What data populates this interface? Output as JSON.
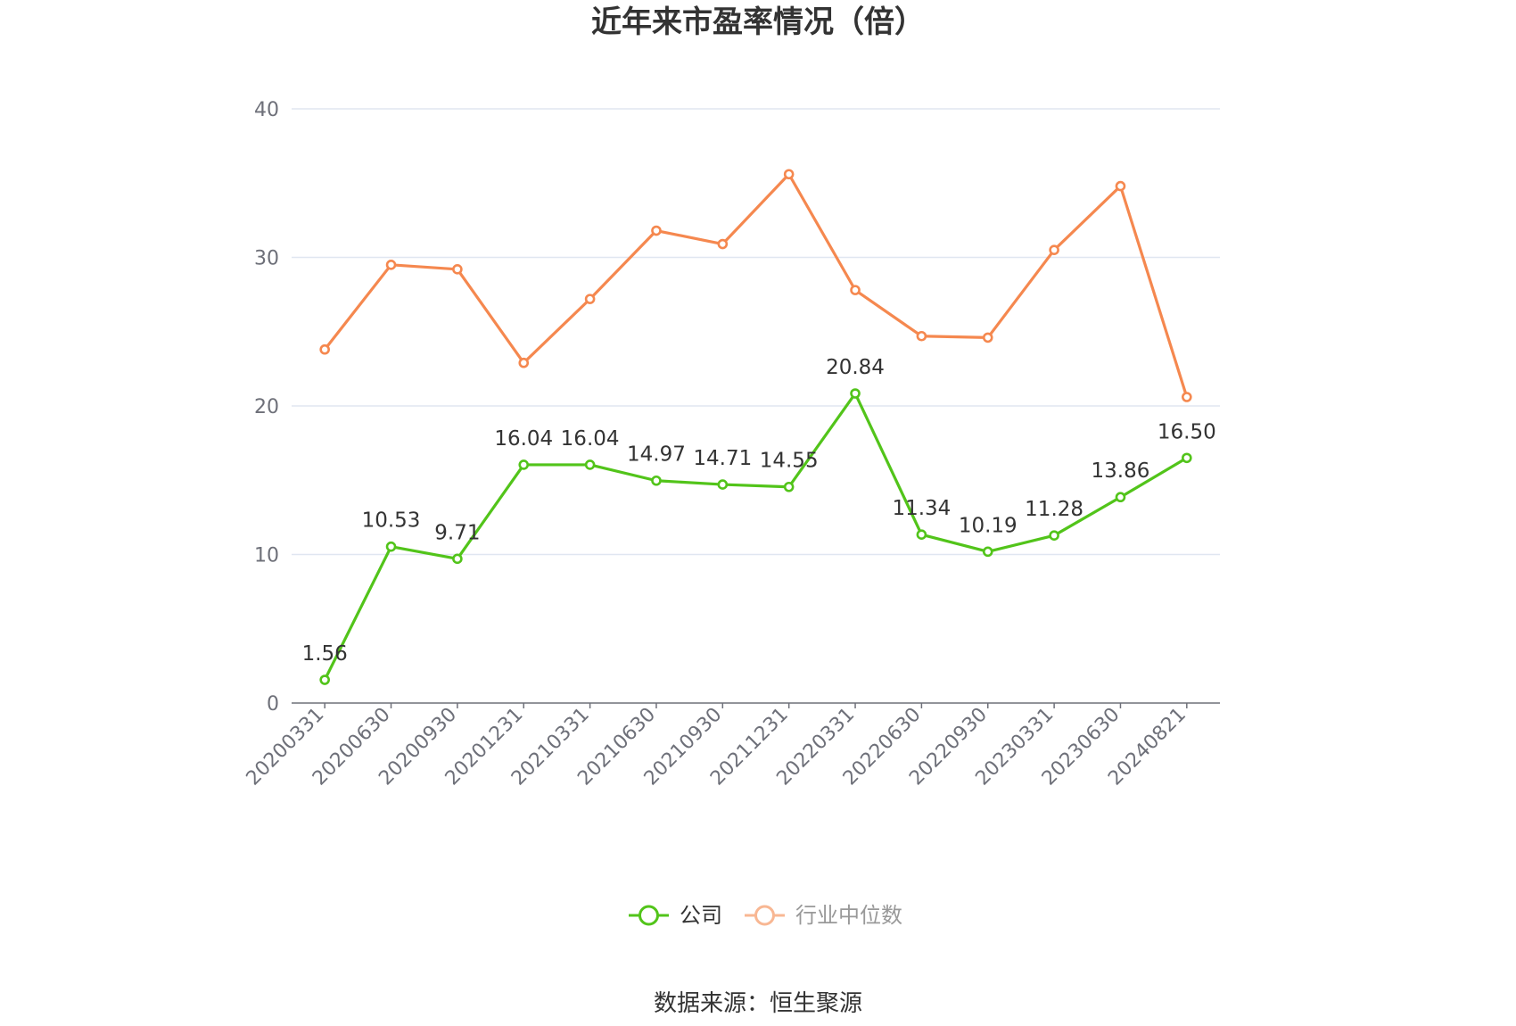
{
  "chart_data": {
    "type": "line",
    "title": "近年来市盈率情况（倍）",
    "categories": [
      "20200331",
      "20200630",
      "20200930",
      "20201231",
      "20210331",
      "20210630",
      "20210930",
      "20211231",
      "20220331",
      "20220630",
      "20220930",
      "20230331",
      "20230630",
      "20240821"
    ],
    "ylim": [
      0,
      40
    ],
    "yticks": [
      0,
      10,
      20,
      30,
      40
    ],
    "grid": true,
    "legend_position": "bottom",
    "series": [
      {
        "name": "公司",
        "color": "#52c41a",
        "values": [
          1.56,
          10.53,
          9.71,
          16.04,
          16.04,
          14.97,
          14.71,
          14.55,
          20.84,
          11.34,
          10.19,
          11.28,
          13.86,
          16.5
        ],
        "labels": [
          "1.56",
          "10.53",
          "9.71",
          "16.04",
          "16.04",
          "14.97",
          "14.71",
          "14.55",
          "20.84",
          "11.34",
          "10.19",
          "11.28",
          "13.86",
          "16.50"
        ]
      },
      {
        "name": "行业中位数",
        "color": "#f5884f",
        "values": [
          23.8,
          29.5,
          29.2,
          22.9,
          27.2,
          31.8,
          30.9,
          35.6,
          27.8,
          24.7,
          24.6,
          30.5,
          34.8,
          20.6
        ]
      }
    ],
    "source": "数据来源：恒生聚源"
  }
}
